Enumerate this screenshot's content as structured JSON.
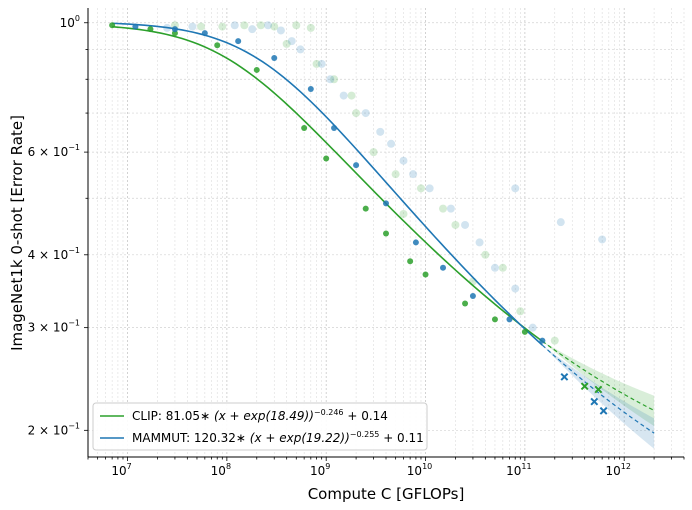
{
  "chart_data": {
    "type": "scatter",
    "xlabel": "Compute C [GFLOPs]",
    "ylabel": "ImageNet1k 0-shot [Error Rate]",
    "xscale": "log",
    "yscale": "log",
    "xlim": [
      4000000,
      4000000000000
    ],
    "ylim": [
      0.18,
      1.06
    ],
    "x_ticks": [
      {
        "value": 10000000,
        "base": "10",
        "exp": "7"
      },
      {
        "value": 100000000,
        "base": "10",
        "exp": "8"
      },
      {
        "value": 1000000000,
        "base": "10",
        "exp": "9"
      },
      {
        "value": 10000000000,
        "base": "10",
        "exp": "10"
      },
      {
        "value": 100000000000,
        "base": "10",
        "exp": "11"
      },
      {
        "value": 1000000000000,
        "base": "10",
        "exp": "12"
      }
    ],
    "y_ticks": [
      {
        "value": 1.0,
        "label": "10",
        "exp": "0"
      },
      {
        "value": 0.6,
        "label": "6 × 10",
        "exp": "−1"
      },
      {
        "value": 0.4,
        "label": "4 × 10",
        "exp": "−1"
      },
      {
        "value": 0.3,
        "label": "3 × 10",
        "exp": "−1"
      },
      {
        "value": 0.2,
        "label": "2 × 10",
        "exp": "−1"
      }
    ],
    "grid": true,
    "legend_position": "bottom-left",
    "series": [
      {
        "name": "CLIP",
        "color": "#2ca02c",
        "legend_text": "CLIP: 81.05 * (x + exp(18.49))^(−0.246) + 0.14",
        "legend_parts": {
          "pre": "CLIP: 81.05",
          "mid": " (x + exp(18.49))",
          "exp": "−0.246",
          "post": " + 0.14"
        },
        "fit": {
          "a": 81.05,
          "b": 18.49,
          "alpha": 0.246,
          "c": 0.14
        },
        "fit_range": [
          7000000,
          150000000000
        ],
        "extrapolation_range": [
          150000000000,
          2000000000000
        ],
        "frontier_points": [
          [
            7000000,
            0.99
          ],
          [
            17000000,
            0.975
          ],
          [
            30000000,
            0.96
          ],
          [
            80000000,
            0.915
          ],
          [
            200000000,
            0.83
          ],
          [
            600000000,
            0.66
          ],
          [
            1000000000,
            0.585
          ],
          [
            2500000000,
            0.48
          ],
          [
            4000000000,
            0.435
          ],
          [
            7000000000,
            0.39
          ],
          [
            10000000000,
            0.37
          ],
          [
            25000000000,
            0.33
          ],
          [
            50000000000,
            0.31
          ],
          [
            100000000000,
            0.295
          ]
        ],
        "heldout_points": [
          [
            400000000000,
            0.238
          ],
          [
            550000000000,
            0.235
          ]
        ],
        "cloud_points": [
          [
            30000000,
            0.99
          ],
          [
            55000000,
            0.985
          ],
          [
            90000000,
            0.985
          ],
          [
            150000000,
            0.99
          ],
          [
            220000000,
            0.99
          ],
          [
            300000000,
            0.985
          ],
          [
            500000000,
            0.99
          ],
          [
            700000000,
            0.98
          ],
          [
            400000000,
            0.92
          ],
          [
            800000000,
            0.85
          ],
          [
            1200000000,
            0.8
          ],
          [
            2000000000,
            0.7
          ],
          [
            3000000000,
            0.6
          ],
          [
            5000000000,
            0.55
          ],
          [
            9000000000,
            0.52
          ],
          [
            15000000000,
            0.48
          ],
          [
            20000000000,
            0.45
          ],
          [
            40000000000,
            0.4
          ],
          [
            60000000000,
            0.38
          ],
          [
            1800000000,
            0.75
          ],
          [
            6000000000,
            0.47
          ],
          [
            30000000000,
            0.36
          ],
          [
            90000000000,
            0.32
          ],
          [
            200000000000,
            0.285
          ]
        ]
      },
      {
        "name": "MAMMUT",
        "color": "#1f77b4",
        "legend_text": "MAMMUT: 120.32 * (x + exp(19.22))^(−0.255) + 0.11",
        "legend_parts": {
          "pre": "MAMMUT: 120.32",
          "mid": " (x + exp(19.22))",
          "exp": "−0.255",
          "post": " + 0.11"
        },
        "fit": {
          "a": 120.32,
          "b": 19.22,
          "alpha": 0.255,
          "c": 0.11
        },
        "fit_range": [
          7000000,
          150000000000
        ],
        "extrapolation_range": [
          150000000000,
          2000000000000
        ],
        "frontier_points": [
          [
            12000000,
            0.985
          ],
          [
            30000000,
            0.975
          ],
          [
            60000000,
            0.96
          ],
          [
            130000000,
            0.93
          ],
          [
            300000000,
            0.87
          ],
          [
            700000000,
            0.77
          ],
          [
            1200000000,
            0.66
          ],
          [
            2000000000,
            0.57
          ],
          [
            4000000000,
            0.49
          ],
          [
            8000000000,
            0.42
          ],
          [
            15000000000,
            0.38
          ],
          [
            30000000000,
            0.34
          ],
          [
            70000000000,
            0.31
          ],
          [
            150000000000,
            0.285
          ]
        ],
        "heldout_points": [
          [
            250000000000,
            0.247
          ],
          [
            500000000000,
            0.224
          ],
          [
            620000000000,
            0.216
          ]
        ],
        "cloud_points": [
          [
            25000000,
            0.98
          ],
          [
            45000000,
            0.985
          ],
          [
            120000000,
            0.99
          ],
          [
            180000000,
            0.975
          ],
          [
            260000000,
            0.99
          ],
          [
            350000000,
            0.97
          ],
          [
            450000000,
            0.93
          ],
          [
            550000000,
            0.9
          ],
          [
            900000000,
            0.85
          ],
          [
            1100000000,
            0.8
          ],
          [
            1500000000,
            0.75
          ],
          [
            2500000000,
            0.7
          ],
          [
            3500000000,
            0.65
          ],
          [
            4500000000,
            0.62
          ],
          [
            6000000000,
            0.58
          ],
          [
            7500000000,
            0.55
          ],
          [
            11000000000,
            0.52
          ],
          [
            18000000000,
            0.48
          ],
          [
            25000000000,
            0.45
          ],
          [
            35000000000,
            0.42
          ],
          [
            50000000000,
            0.38
          ],
          [
            80000000000,
            0.35
          ],
          [
            80000000000,
            0.52
          ],
          [
            230000000000,
            0.455
          ],
          [
            600000000000,
            0.425
          ],
          [
            120000000000,
            0.3
          ]
        ]
      }
    ]
  }
}
